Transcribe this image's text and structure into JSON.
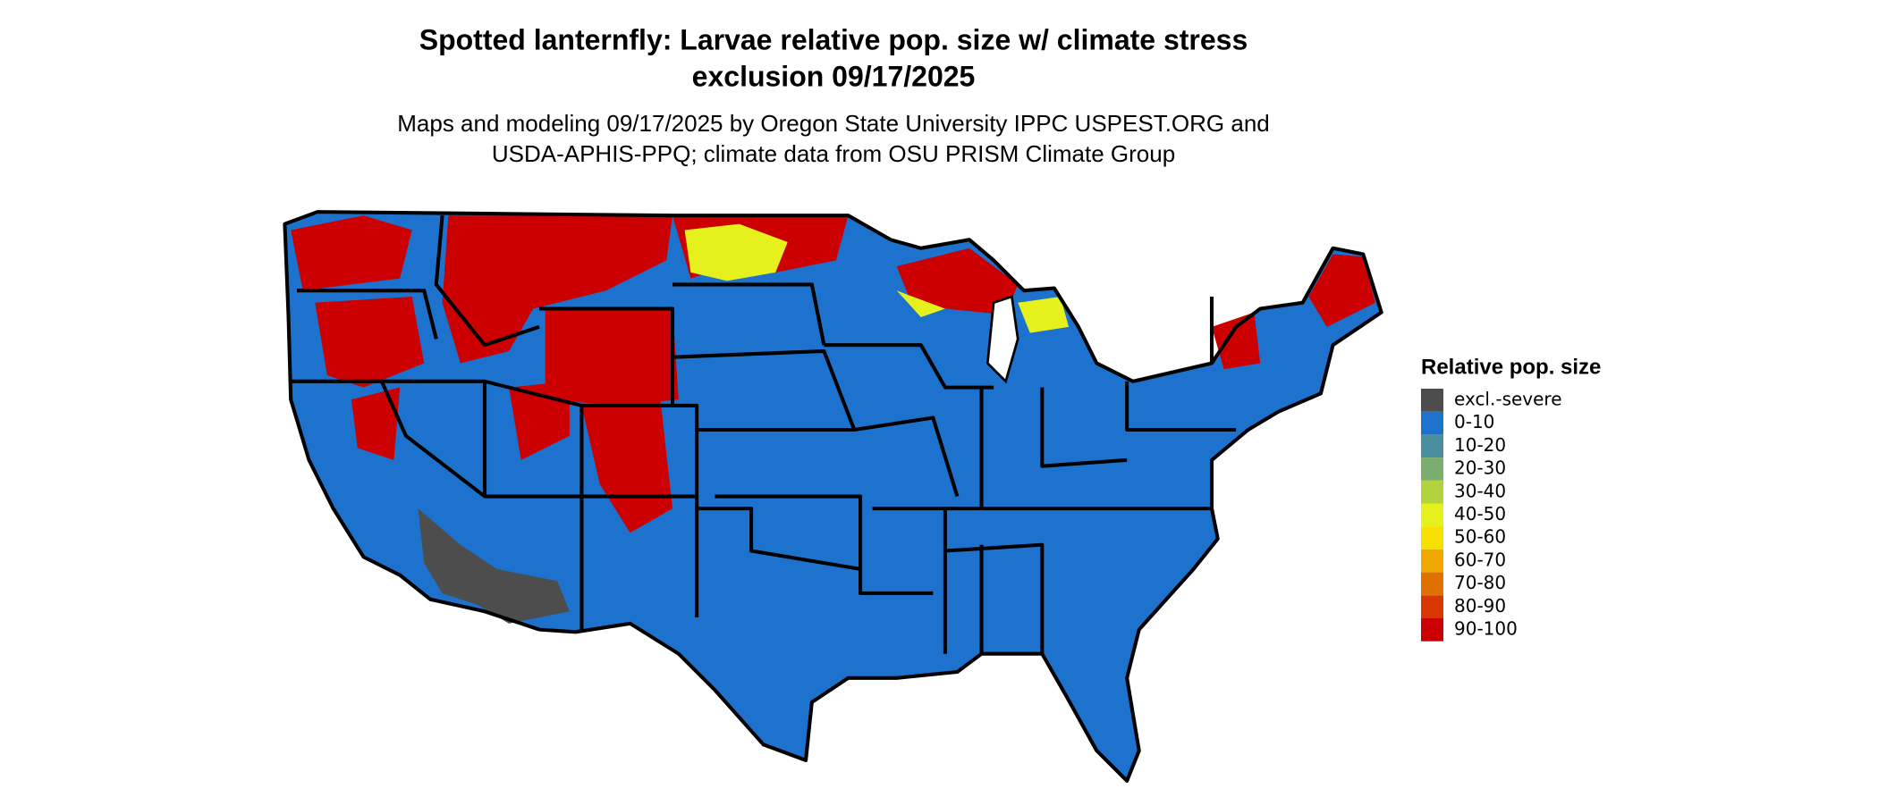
{
  "title": {
    "lines": [
      "Spotted lanternfly: Larvae relative pop. size w/ climate stress",
      "exclusion 09/17/2025"
    ]
  },
  "subtitle": {
    "lines": [
      "Maps and modeling 09/17/2025 by Oregon State University IPPC USPEST.ORG and",
      "USDA-APHIS-PPQ; climate data from OSU PRISM Climate Group"
    ]
  },
  "legend": {
    "title": "Relative pop. size",
    "items": [
      {
        "label": "excl.-severe",
        "color": "#4d4d4d"
      },
      {
        "label": "0-10",
        "color": "#1c72cc"
      },
      {
        "label": "10-20",
        "color": "#4a8fa0"
      },
      {
        "label": "20-30",
        "color": "#7aad6e"
      },
      {
        "label": "30-40",
        "color": "#b2d23e"
      },
      {
        "label": "40-50",
        "color": "#e6f01c"
      },
      {
        "label": "50-60",
        "color": "#f7e000"
      },
      {
        "label": "60-70",
        "color": "#f0a800"
      },
      {
        "label": "70-80",
        "color": "#e07000"
      },
      {
        "label": "80-90",
        "color": "#d83800"
      },
      {
        "label": "90-100",
        "color": "#cc0000"
      }
    ]
  }
}
